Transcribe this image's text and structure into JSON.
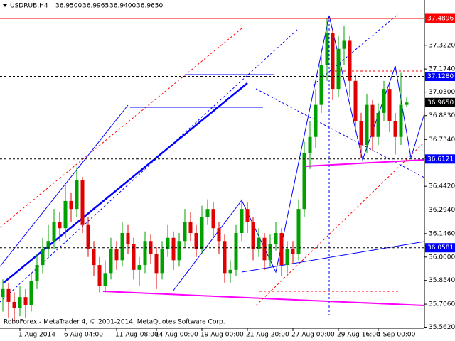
{
  "chart_data": {
    "type": "candlestick",
    "symbol": "USDRUB,H4",
    "header_values": [
      {
        "value": 36.95,
        "label": "36.9500"
      },
      {
        "value": 36.9965,
        "label": "36.9965"
      },
      {
        "value": 36.94,
        "label": "36.9400"
      },
      {
        "value": 36.965,
        "label": "36.9650"
      }
    ],
    "footer": "RoboForex - MetaTrader 4, © 2001-2014, MetaQuotes Software Corp.",
    "categories": [
      null,
      null,
      null,
      "1 Aug 2014",
      null,
      null,
      null,
      null,
      null,
      null,
      null,
      "6 Aug 04:00",
      null,
      null,
      null,
      null,
      null,
      null,
      null,
      null,
      "11 Aug 08:00",
      null,
      null,
      null,
      null,
      null,
      null,
      "14 Aug 00:00",
      null,
      null,
      null,
      null,
      null,
      null,
      null,
      "19 Aug 00:00",
      null,
      null,
      null,
      null,
      null,
      null,
      null,
      "21 Aug 20:00",
      null,
      null,
      null,
      null,
      null,
      null,
      null,
      "27 Aug 00:00",
      null,
      null,
      null,
      null,
      null,
      null,
      null,
      "29 Aug 16:00",
      null,
      null,
      null,
      null,
      null,
      null,
      "4 Sep 00:00",
      null,
      null,
      null,
      null,
      null
    ],
    "open": [
      35.75,
      35.8,
      35.72,
      35.68,
      35.75,
      35.7,
      35.85,
      35.95,
      36.05,
      36.1,
      36.22,
      36.18,
      36.35,
      36.3,
      36.48,
      36.2,
      36.05,
      35.95,
      35.82,
      35.9,
      36.05,
      35.98,
      36.15,
      36.08,
      35.92,
      35.95,
      36.1,
      36.02,
      35.9,
      36.05,
      36.12,
      35.98,
      36.1,
      36.22,
      36.15,
      36.05,
      36.25,
      36.3,
      36.18,
      36.1,
      35.9,
      35.92,
      36.15,
      36.3,
      36.22,
      36.05,
      36.12,
      35.98,
      36.08,
      36.15,
      35.95,
      36.05,
      36.02,
      36.3,
      36.65,
      36.75,
      36.95,
      37.2,
      37.4,
      37.05,
      37.3,
      37.35,
      37.1,
      36.85,
      36.7,
      36.95,
      36.75,
      36.9,
      37.05,
      36.85,
      36.75,
      36.95
    ],
    "high": [
      35.86,
      35.84,
      35.78,
      35.82,
      35.8,
      35.9,
      36.02,
      36.12,
      36.2,
      36.3,
      36.28,
      36.45,
      36.4,
      36.56,
      36.5,
      36.25,
      36.1,
      36.0,
      35.98,
      36.12,
      36.1,
      36.22,
      36.2,
      36.12,
      36.0,
      36.16,
      36.14,
      36.06,
      36.1,
      36.2,
      36.16,
      36.15,
      36.3,
      36.28,
      36.2,
      36.32,
      36.36,
      36.34,
      36.22,
      36.14,
      35.98,
      36.2,
      36.36,
      36.34,
      36.25,
      36.18,
      36.15,
      36.14,
      36.22,
      36.18,
      36.1,
      36.1,
      36.36,
      36.72,
      36.85,
      37.05,
      37.3,
      37.49,
      37.42,
      37.38,
      37.44,
      37.38,
      37.14,
      36.9,
      37.02,
      36.98,
      36.96,
      37.1,
      37.08,
      36.9,
      37.15,
      36.9965
    ],
    "low": [
      35.66,
      35.62,
      35.6,
      35.63,
      35.62,
      35.66,
      35.8,
      35.9,
      36.0,
      36.05,
      36.1,
      36.12,
      36.22,
      36.25,
      36.15,
      36.0,
      35.88,
      35.78,
      35.78,
      35.86,
      35.92,
      35.94,
      36.02,
      35.86,
      35.82,
      35.9,
      35.96,
      35.8,
      35.86,
      36.0,
      35.92,
      35.94,
      36.06,
      36.1,
      36.0,
      36.02,
      36.2,
      36.12,
      36.02,
      35.84,
      35.84,
      35.88,
      36.1,
      36.15,
      35.98,
      36.0,
      35.92,
      35.94,
      36.04,
      35.88,
      35.9,
      35.96,
      35.98,
      36.25,
      36.55,
      36.68,
      36.9,
      37.1,
      36.98,
      37.0,
      37.2,
      37.0,
      36.78,
      36.62,
      36.65,
      36.66,
      36.7,
      36.85,
      36.78,
      36.64,
      36.7,
      36.94
    ],
    "close": [
      35.8,
      35.72,
      35.68,
      35.75,
      35.7,
      35.85,
      35.95,
      36.05,
      36.1,
      36.22,
      36.18,
      36.35,
      36.3,
      36.48,
      36.2,
      36.05,
      35.95,
      35.82,
      35.9,
      36.05,
      35.98,
      36.15,
      36.08,
      35.92,
      35.95,
      36.1,
      36.02,
      35.9,
      36.05,
      36.12,
      35.98,
      36.1,
      36.22,
      36.15,
      36.05,
      36.25,
      36.3,
      36.18,
      36.1,
      35.9,
      35.92,
      36.15,
      36.3,
      36.22,
      36.05,
      36.12,
      35.98,
      36.08,
      36.15,
      35.95,
      36.05,
      36.02,
      36.3,
      36.65,
      36.75,
      36.95,
      37.2,
      37.4,
      37.05,
      37.3,
      37.35,
      37.1,
      36.85,
      36.7,
      36.95,
      36.75,
      36.9,
      37.05,
      36.85,
      36.75,
      36.95,
      36.965
    ],
    "up_color": "#00a000",
    "down_color": "#e00000",
    "ylim": [
      35.56,
      37.596
    ],
    "yticks": [
      {
        "value": 37.322,
        "label": "37.3220"
      },
      {
        "value": 37.174,
        "label": "37.1740"
      },
      {
        "value": 37.03,
        "label": "37.0300"
      },
      {
        "value": 36.883,
        "label": "36.8830"
      },
      {
        "value": 36.734,
        "label": "36.7340"
      },
      {
        "value": 36.442,
        "label": "36.4420"
      },
      {
        "value": 36.294,
        "label": "36.2940"
      },
      {
        "value": 36.146,
        "label": "36.1460"
      },
      {
        "value": 36.0,
        "label": "36.0000"
      },
      {
        "value": 35.854,
        "label": "35.8540"
      },
      {
        "value": 35.706,
        "label": "35.7060"
      },
      {
        "value": 35.562,
        "label": "35.5620"
      }
    ],
    "levels": [
      {
        "value": 37.4896,
        "label": "37.4896",
        "color": "#ff0000",
        "line": "solid"
      },
      {
        "value": 37.128,
        "label": "37.1280",
        "color": "#0000ff",
        "line": "dashed"
      },
      {
        "value": 36.965,
        "label": "36.9650",
        "color": "#000000",
        "line": "none"
      },
      {
        "value": 36.6121,
        "label": "36.6121",
        "color": "#0000ff",
        "line": "dashed"
      },
      {
        "value": 36.0581,
        "label": "36.0581",
        "color": "#0000ff",
        "line": "dashed"
      }
    ]
  }
}
